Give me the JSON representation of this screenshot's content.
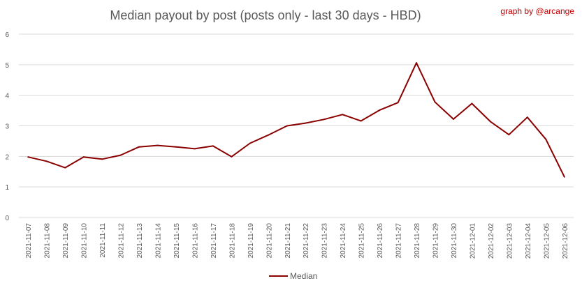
{
  "credit": "graph by @arcange",
  "chart_data": {
    "type": "line",
    "title": "Median payout by post (posts only - last 30 days - HBD)",
    "xlabel": "",
    "ylabel": "",
    "ylim": [
      0,
      6
    ],
    "yticks": [
      "0",
      "1",
      "2",
      "3",
      "4",
      "5",
      "6"
    ],
    "grid": true,
    "legend_position": "bottom",
    "x": [
      "2021-11-07",
      "2021-11-08",
      "2021-11-09",
      "2021-11-10",
      "2021-11-11",
      "2021-11-12",
      "2021-11-13",
      "2021-11-14",
      "2021-11-15",
      "2021-11-16",
      "2021-11-17",
      "2021-11-18",
      "2021-11-19",
      "2021-11-20",
      "2021-11-21",
      "2021-11-22",
      "2021-11-23",
      "2021-11-24",
      "2021-11-25",
      "2021-11-26",
      "2021-11-27",
      "2021-11-28",
      "2021-11-29",
      "2021-11-30",
      "2021-12-01",
      "2021-12-02",
      "2021-12-03",
      "2021-12-04",
      "2021-12-05",
      "2021-12-06"
    ],
    "series": [
      {
        "name": "Median",
        "color": "#8b0000",
        "values": [
          1.98,
          1.84,
          1.63,
          1.98,
          1.91,
          2.04,
          2.31,
          2.36,
          2.31,
          2.25,
          2.34,
          1.99,
          2.43,
          2.7,
          3.0,
          3.09,
          3.21,
          3.37,
          3.16,
          3.51,
          3.76,
          5.06,
          3.78,
          3.22,
          3.73,
          3.14,
          2.71,
          3.28,
          2.56,
          1.33
        ]
      }
    ]
  }
}
